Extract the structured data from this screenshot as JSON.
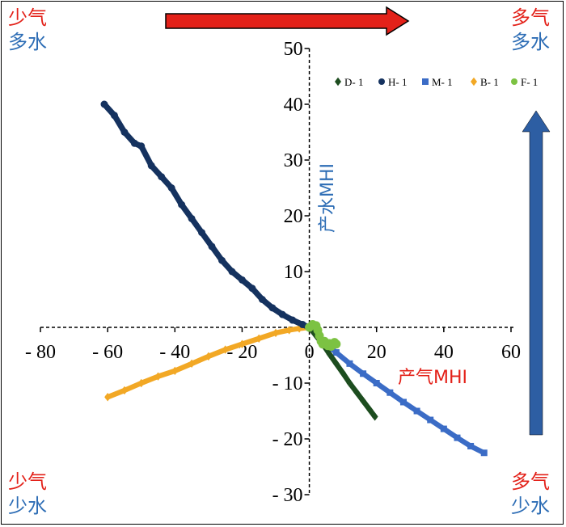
{
  "corners": {
    "top_left": [
      "少气",
      "多水"
    ],
    "top_right": [
      "多气",
      "多水"
    ],
    "bottom_left": [
      "少气",
      "少水"
    ],
    "bottom_right": [
      "多气",
      "少水"
    ]
  },
  "colors": {
    "D-1": "#1d4d1f",
    "H-1": "#15325f",
    "M-1": "#3b6cc6",
    "B-1": "#f2a825",
    "F-1": "#7cc242",
    "arrow_red": "#e32119",
    "arrow_blue": "#2d5ea3",
    "label_red": "#e32119",
    "label_blue": "#2d6db5"
  },
  "chart_data": {
    "type": "scatter",
    "title": "",
    "xlabel": "产气MHI",
    "ylabel": "产水MHI",
    "xlim": [
      -80,
      60
    ],
    "ylim": [
      -30,
      50
    ],
    "xticks": [
      -80,
      -60,
      -40,
      -20,
      0,
      20,
      40,
      60
    ],
    "yticks": [
      -30,
      -20,
      -10,
      0,
      10,
      20,
      30,
      40,
      50
    ],
    "xtick_labels": [
      "- 80",
      "- 60",
      "- 40",
      "- 20",
      "0",
      "20",
      "40",
      "60"
    ],
    "ytick_labels": [
      "- 30",
      "- 20",
      "- 10",
      "0",
      "10",
      "20",
      "30",
      "40",
      "50"
    ],
    "grid": false,
    "legend_position": "top-right",
    "series": [
      {
        "name": "D- 1",
        "marker": "diamond",
        "x": [
          0,
          2,
          4,
          6,
          8,
          10,
          12,
          14,
          16,
          18,
          19.5
        ],
        "y": [
          0,
          -1.5,
          -3,
          -4.8,
          -6.5,
          -8.2,
          -10,
          -11.6,
          -13.2,
          -14.8,
          -16
        ]
      },
      {
        "name": "H- 1",
        "marker": "circle",
        "x": [
          -61,
          -58,
          -55,
          -52,
          -50,
          -47,
          -44,
          -41,
          -38,
          -35,
          -32,
          -29,
          -26,
          -23,
          -20,
          -17,
          -14,
          -11,
          -8,
          -5,
          -2,
          0
        ],
        "y": [
          40,
          38,
          35,
          33,
          32.5,
          29,
          27,
          25,
          22,
          19.5,
          17,
          14.5,
          12,
          10,
          8.5,
          7,
          5,
          3.5,
          2.3,
          1.3,
          0.5,
          0
        ]
      },
      {
        "name": "M- 1",
        "marker": "square",
        "x": [
          0,
          4,
          8,
          12,
          16,
          20,
          24,
          28,
          32,
          36,
          40,
          44,
          48,
          52
        ],
        "y": [
          0,
          -2.5,
          -4.5,
          -6.5,
          -8.3,
          -10,
          -11.7,
          -13.4,
          -15,
          -16.6,
          -18.2,
          -19.8,
          -21.3,
          -22.5
        ]
      },
      {
        "name": "B- 1",
        "marker": "diamond",
        "x": [
          -60,
          -55,
          -50,
          -45,
          -40,
          -35,
          -30,
          -25,
          -20,
          -15,
          -10,
          -6,
          -3,
          0
        ],
        "y": [
          -12.5,
          -11.3,
          -10,
          -8.8,
          -7.8,
          -6.5,
          -5.2,
          -4,
          -3,
          -2,
          -1,
          -0.5,
          -0.2,
          0
        ]
      },
      {
        "name": "F- 1",
        "marker": "circle",
        "x": [
          0,
          1,
          2,
          2.5,
          3,
          3.5,
          4,
          4.5,
          5,
          5.5,
          6,
          6.5,
          7,
          7.5,
          8
        ],
        "y": [
          0,
          0.5,
          0.3,
          -0.5,
          -1.5,
          -2.5,
          -3,
          -2.5,
          -2.8,
          -3.3,
          -2.9,
          -3.4,
          -3,
          -2.7,
          -3
        ]
      }
    ]
  }
}
